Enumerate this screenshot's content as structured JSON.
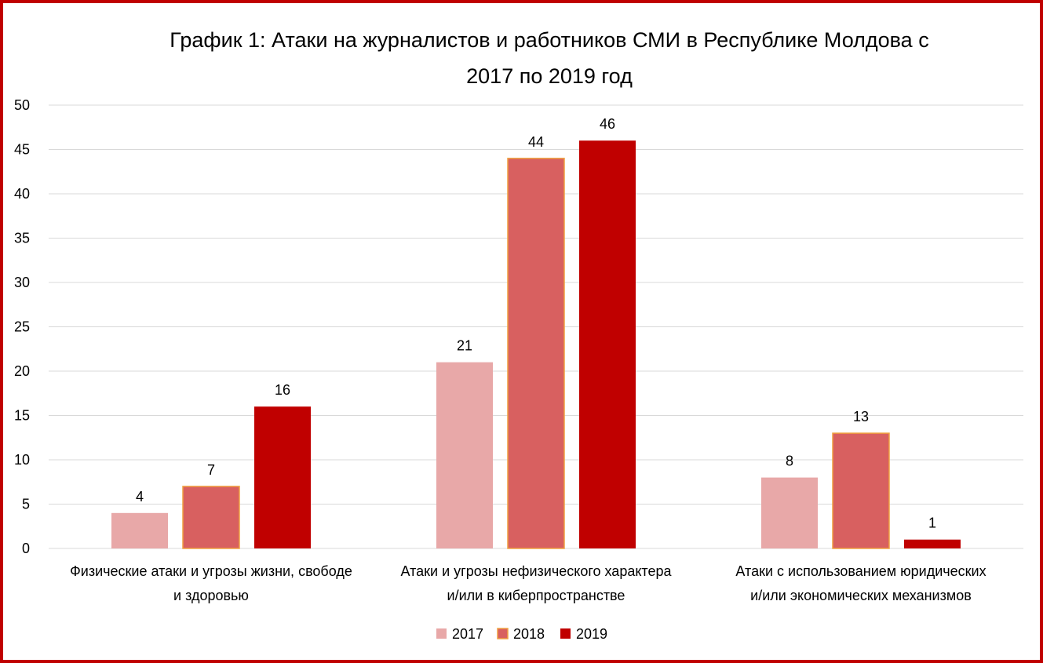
{
  "chart_data": {
    "type": "bar",
    "title_line1": "График 1: Атаки на журналистов и работников СМИ в Республике Молдова с",
    "title_line2": "2017 по 2019 год",
    "categories": [
      [
        "Физические атаки и угрозы жизни, свободе",
        "и здоровью"
      ],
      [
        "Атаки и угрозы нефизического характера",
        "и/или в киберпространстве"
      ],
      [
        "Атаки с использованием юридических",
        "и/или экономических механизмов"
      ]
    ],
    "series": [
      {
        "name": "2017",
        "values": [
          4,
          21,
          8
        ],
        "color": "#e8a8a8",
        "stroke": "none"
      },
      {
        "name": "2018",
        "values": [
          7,
          44,
          13
        ],
        "color": "#d86060",
        "stroke": "#f0a040"
      },
      {
        "name": "2019",
        "values": [
          16,
          46,
          1
        ],
        "color": "#c00000",
        "stroke": "none"
      }
    ],
    "ylim": [
      0,
      50
    ],
    "yticks": [
      0,
      5,
      10,
      15,
      20,
      25,
      30,
      35,
      40,
      45,
      50
    ],
    "grid": true,
    "legend": "bottom-center"
  }
}
